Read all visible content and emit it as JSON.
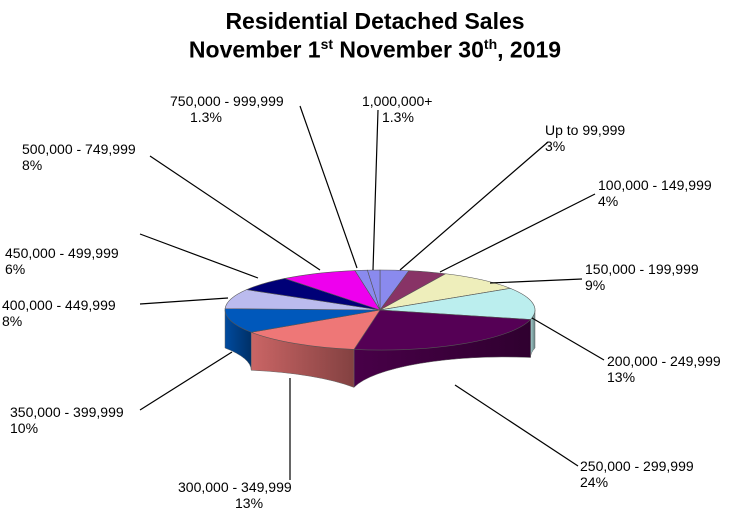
{
  "chart_data": {
    "type": "pie",
    "title_line1": "Residential Detached Sales",
    "title_line2": {
      "a": "November 1",
      "a_sup": "st",
      "b": " November 30",
      "b_sup": "th",
      "c": ", 2019"
    },
    "slices": [
      {
        "label": "Up to 99,999",
        "pct_text": "3%",
        "value": 3,
        "color": "#8a8aee"
      },
      {
        "label": "100,000 - 149,999",
        "pct_text": "4%",
        "value": 4,
        "color": "#883366"
      },
      {
        "label": "150,000 - 199,999",
        "pct_text": "9%",
        "value": 9,
        "color": "#eeeebb"
      },
      {
        "label": "200,000 - 249,999",
        "pct_text": "13%",
        "value": 13,
        "color": "#bbeeee"
      },
      {
        "label": "250,000 - 299,999",
        "pct_text": "24%",
        "value": 24,
        "color": "#550055"
      },
      {
        "label": "300,000 - 349,999",
        "pct_text": "13%",
        "value": 13,
        "color": "#ee7777"
      },
      {
        "label": "350,000 - 399,999",
        "pct_text": "10%",
        "value": 10,
        "color": "#0058bb"
      },
      {
        "label": "400,000 - 449,999",
        "pct_text": "8%",
        "value": 8,
        "color": "#bbbbee"
      },
      {
        "label": "450,000 - 499,999",
        "pct_text": "6%",
        "value": 6,
        "color": "#000077"
      },
      {
        "label": "500,000 - 749,999",
        "pct_text": "8%",
        "value": 8,
        "color": "#ee00ee"
      },
      {
        "label": "750,000 - 999,999",
        "pct_text": "1.3%",
        "value": 1.3,
        "color": "#8a8aee"
      },
      {
        "label": "1,000,000+",
        "pct_text": "1.3%",
        "value": 1.3,
        "color": "#8a8aee"
      }
    ]
  }
}
